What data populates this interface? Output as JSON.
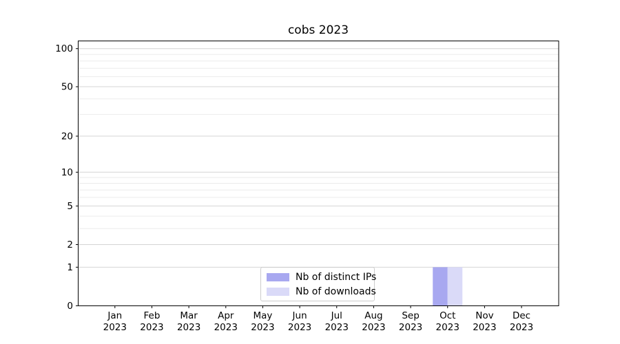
{
  "title": "cobs 2023",
  "chart_data": {
    "type": "bar",
    "title": "cobs 2023",
    "categories": [
      "Jan",
      "Feb",
      "Mar",
      "Apr",
      "May",
      "Jun",
      "Jul",
      "Aug",
      "Sep",
      "Oct",
      "Nov",
      "Dec"
    ],
    "category_year": "2023",
    "series": [
      {
        "name": "Nb of distinct IPs",
        "color": "#a8a8f0",
        "values": [
          0,
          0,
          0,
          0,
          0,
          0,
          0,
          0,
          0,
          1,
          0,
          0
        ]
      },
      {
        "name": "Nb of downloads",
        "color": "#dadaf8",
        "values": [
          0,
          0,
          0,
          0,
          0,
          0,
          0,
          0,
          0,
          1,
          0,
          0
        ]
      }
    ],
    "xlabel": "",
    "ylabel": "",
    "yaxis": {
      "scale": "log1p",
      "tick_labels": [
        "0",
        "1",
        "2",
        "5",
        "10",
        "20",
        "50",
        "100"
      ],
      "ticks": [
        0,
        1,
        2,
        5,
        10,
        20,
        50,
        100
      ],
      "minor_ticks": [
        3,
        4,
        6,
        7,
        8,
        9,
        30,
        40,
        60,
        70,
        80,
        90
      ],
      "ylim": [
        0,
        114
      ]
    },
    "legend": {
      "position": "bottom-center",
      "entries": [
        "Nb of distinct IPs",
        "Nb of downloads"
      ]
    },
    "grid": true
  },
  "colors": {
    "background": "#ffffff",
    "axis": "#000000",
    "grid_major": "#d4d4d4",
    "grid_minor": "#ebebeb",
    "text": "#000000",
    "legend_border": "#cccccc"
  }
}
